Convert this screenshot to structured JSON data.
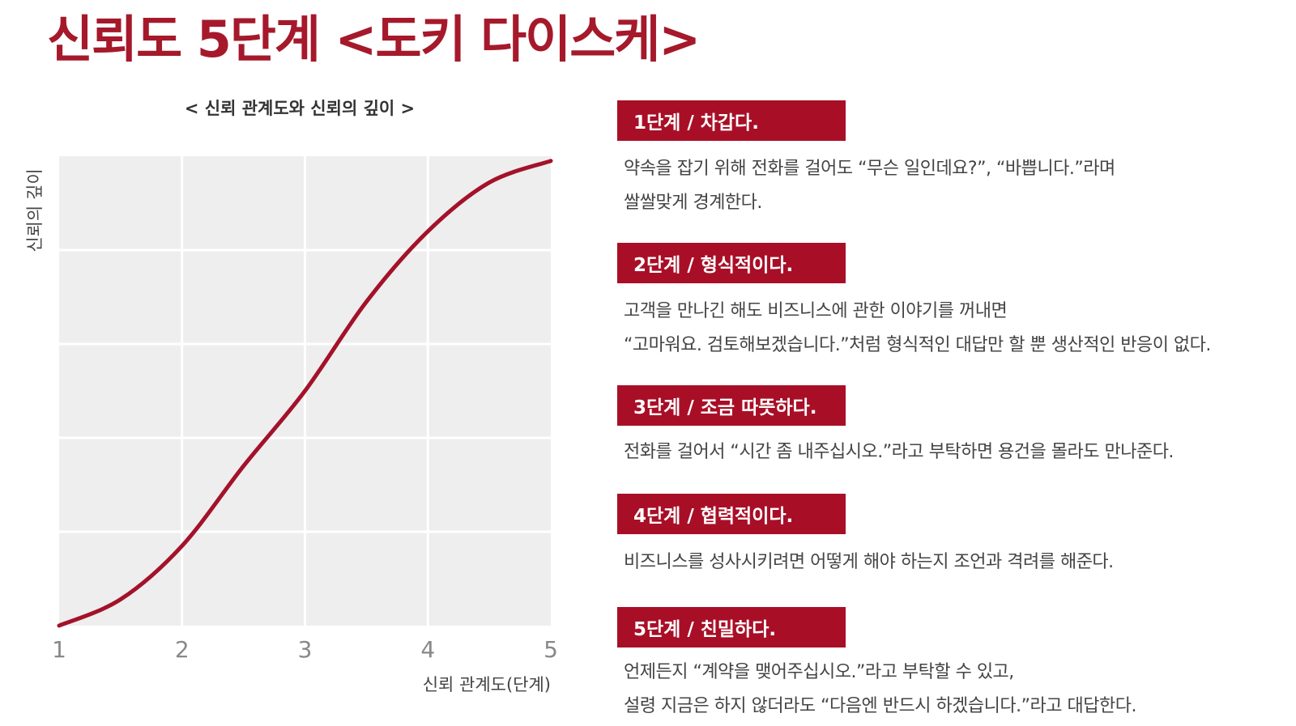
{
  "page_title": "신뢰도 5단계 <도키 다이스케>",
  "colors": {
    "title": "#a5192b",
    "accent": "#a80f27",
    "curve": "#a3122a",
    "plot_bg": "#eeeeee",
    "grid": "#ffffff",
    "tick_label": "#888888"
  },
  "chart_data": {
    "type": "line",
    "title": "< 신뢰 관계도와 신뢰의 깊이 >",
    "xlabel": "신뢰 관계도(단계)",
    "ylabel": "신뢰의 깊이",
    "x_ticks": [
      "1",
      "2",
      "3",
      "4",
      "5"
    ],
    "xlim": [
      1,
      5
    ],
    "ylim": [
      0,
      5
    ],
    "y_tick_labels_shown": false,
    "grid": true,
    "series": [
      {
        "x": [
          1,
          1.5,
          2,
          2.5,
          3,
          3.5,
          4,
          4.5,
          5
        ],
        "y": [
          0,
          0.28,
          0.85,
          1.7,
          2.5,
          3.45,
          4.2,
          4.72,
          4.95
        ]
      }
    ]
  },
  "stages": [
    {
      "header": "1단계 / 차갑다.",
      "lines": [
        "약속을 잡기 위해 전화를 걸어도 “무슨 일인데요?”, “바쁩니다.”라며",
        "쌀쌀맞게 경계한다."
      ]
    },
    {
      "header": "2단계 / 형식적이다.",
      "lines": [
        "고객을 만나긴 해도 비즈니스에 관한 이야기를 꺼내면",
        "“고마워요. 검토해보겠습니다.”처럼 형식적인 대답만 할 뿐 생산적인 반응이 없다."
      ]
    },
    {
      "header": "3단계 / 조금 따뜻하다.",
      "lines": [
        "전화를 걸어서 “시간 좀 내주십시오.”라고 부탁하면 용건을 몰라도 만나준다."
      ]
    },
    {
      "header": "4단계 / 협력적이다.",
      "lines": [
        "비즈니스를 성사시키려면 어떻게 해야 하는지 조언과 격려를 해준다."
      ]
    },
    {
      "header": "5단계 / 친밀하다.",
      "lines": [
        "언제든지 “계약을 맺어주십시오.”라고 부탁할 수 있고,",
        "설령 지금은 하지 않더라도 “다음엔 반드시 하겠습니다.”라고 대답한다."
      ]
    }
  ]
}
